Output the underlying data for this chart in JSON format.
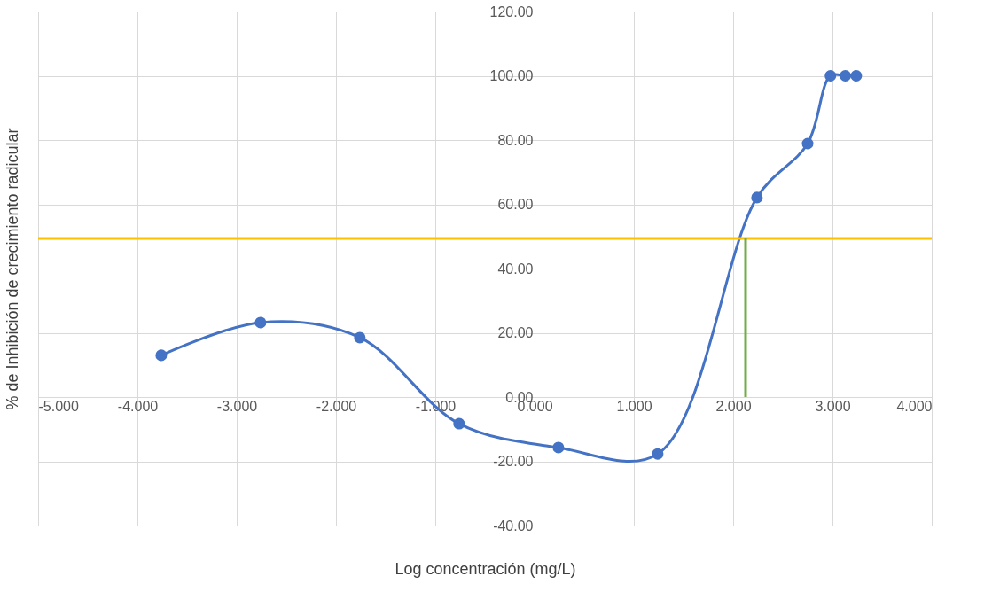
{
  "chart_data": {
    "type": "scatter",
    "xlabel": "Log concentración (mg/L)",
    "ylabel": "% de Inhibición de crecimiento radicular",
    "x": [
      -3.76,
      -2.76,
      -1.76,
      -0.76,
      0.24,
      1.24,
      2.24,
      2.75,
      2.98,
      3.13,
      3.24
    ],
    "series": [
      {
        "type": "line",
        "color": "#4472c4",
        "values": [
          13.0,
          23.2,
          18.5,
          -8.3,
          -15.7,
          -17.7,
          62.1,
          78.9,
          100,
          100,
          100
        ]
      }
    ],
    "xlim": [
      -5,
      4
    ],
    "xticks": [
      {
        "value": -5,
        "label": "-5.000"
      },
      {
        "value": -4,
        "label": "-4.000"
      },
      {
        "value": -3,
        "label": "-3.000"
      },
      {
        "value": -2,
        "label": "-2.000"
      },
      {
        "value": -1,
        "label": "-1.000"
      },
      {
        "value": 0,
        "label": "0.000"
      },
      {
        "value": 1,
        "label": "1.000"
      },
      {
        "value": 2,
        "label": "2.000"
      },
      {
        "value": 3,
        "label": "3.000"
      },
      {
        "value": 4,
        "label": "4.000"
      }
    ],
    "ylim": [
      -40,
      120
    ],
    "yticks": [
      {
        "value": -40,
        "label": "-40.00"
      },
      {
        "value": -20,
        "label": "-20.00"
      },
      {
        "value": 0,
        "label": "0.00"
      },
      {
        "value": 20,
        "label": "20.00"
      },
      {
        "value": 40,
        "label": "40.00"
      },
      {
        "value": 60,
        "label": "60.00"
      },
      {
        "value": 80,
        "label": "80.00"
      },
      {
        "value": 100,
        "label": "100.00"
      },
      {
        "value": 120,
        "label": "120.00"
      }
    ],
    "ref_lines": [
      {
        "axis": "y",
        "value": 49.4,
        "color": "#ffc000"
      },
      {
        "axis": "x",
        "value": 2.125,
        "color": "#70ad47"
      }
    ],
    "grid": true,
    "marker": "circle",
    "line_style": "solid"
  }
}
